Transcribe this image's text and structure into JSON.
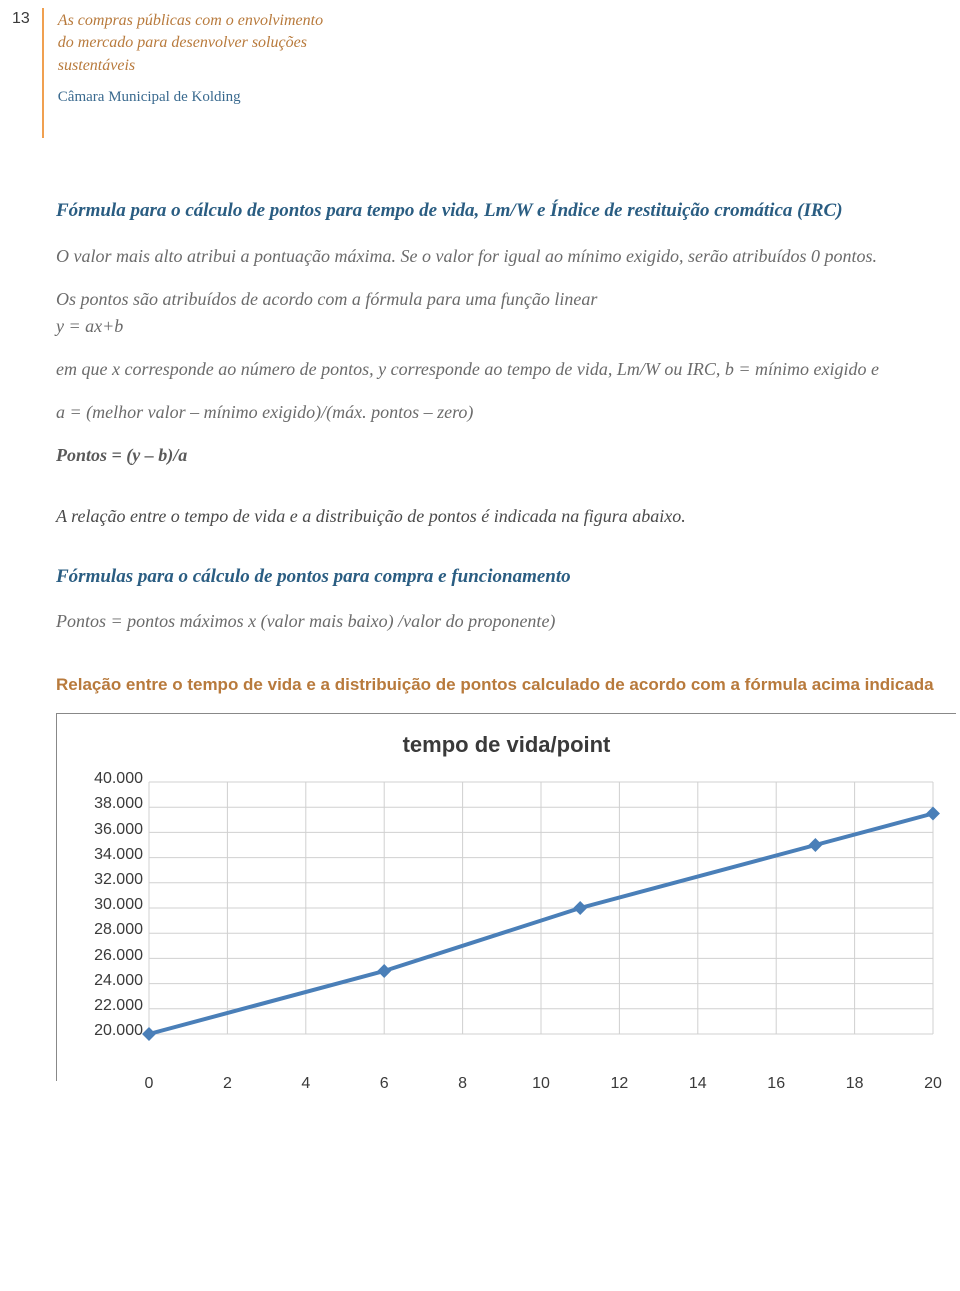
{
  "page_number": "13",
  "header": {
    "title_lines": [
      "As compras públicas com o envolvimento",
      "do mercado para desenvolver soluções",
      "sustentáveis"
    ],
    "subtitle": "Câmara Municipal de Kolding"
  },
  "section1": {
    "title": "Fórmula para o cálculo de pontos para tempo de vida, Lm/W e Índice de restituição cromática (IRC)",
    "p1": "O valor mais alto atribui a pontuação máxima. Se o valor for igual ao mínimo exigido, serão atribuídos 0 pontos.",
    "p2a": "Os pontos são atribuídos de acordo com a fórmula para uma função linear",
    "p2b": "y = ax+b",
    "p3": "em que x corresponde ao número de pontos, y corresponde ao tempo de vida, Lm/W ou IRC, b = mínimo exigido e",
    "p4": "a = (melhor valor – mínimo exigido)/(máx. pontos – zero)",
    "p5_label": "Pontos = (y – b)/a"
  },
  "rel_line": "A relação entre o tempo de vida e a distribuição de pontos é indicada na figura abaixo.",
  "section2": {
    "title": "Fórmulas para o cálculo de pontos para compra e funcionamento",
    "p1": "Pontos = pontos máximos x (valor mais baixo) /valor do proponente)"
  },
  "chart": {
    "heading": "Relação entre o tempo de vida e a distribuição de pontos calculado de acordo com a fórmula acima indicada",
    "title": "tempo de vida/point",
    "type": "line",
    "x_values": [
      0,
      6,
      11,
      17,
      20
    ],
    "y_values": [
      20000,
      25000,
      30000,
      35000,
      37500
    ],
    "line_color": "#4a7fb8",
    "marker_color": "#4a7fb8",
    "line_width": 4,
    "marker_size": 10,
    "ylim": [
      20000,
      40000
    ],
    "ytick_step": 2000,
    "y_ticks": [
      "40.000",
      "38.000",
      "36.000",
      "34.000",
      "32.000",
      "30.000",
      "28.000",
      "26.000",
      "24.000",
      "22.000",
      "20.000"
    ],
    "xlim": [
      0,
      20
    ],
    "xtick_step": 2,
    "x_ticks": [
      "0",
      "2",
      "4",
      "6",
      "8",
      "10",
      "12",
      "14",
      "16",
      "18",
      "20"
    ],
    "grid_color": "#d0d0d0",
    "background_color": "#ffffff",
    "label_fontsize": 16,
    "title_fontsize": 22
  }
}
